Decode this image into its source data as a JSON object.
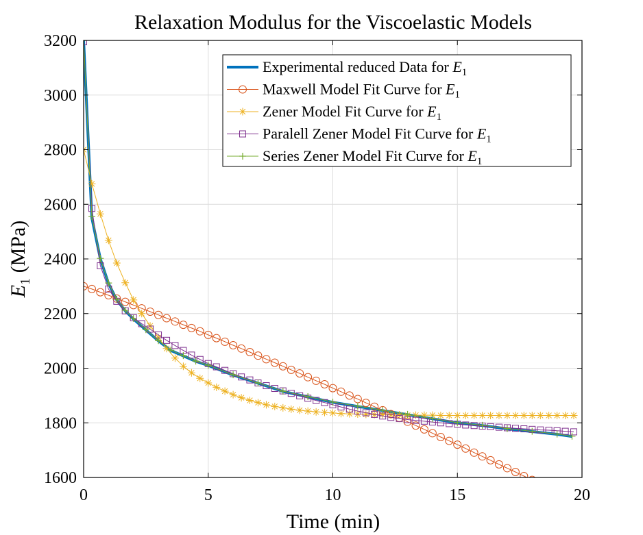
{
  "chart_data": {
    "type": "line",
    "title": "Relaxation Modulus for the Viscoelastic Models",
    "xlabel": "Time (min)",
    "ylabel_var": "E",
    "ylabel_sub": "1",
    "ylabel_unit": "(MPa)",
    "xlim": [
      0,
      20
    ],
    "ylim": [
      1600,
      3200
    ],
    "xticks": [
      0,
      5,
      10,
      15,
      20
    ],
    "yticks": [
      1600,
      1800,
      2000,
      2200,
      2400,
      2600,
      2800,
      3000,
      3200
    ],
    "grid": true,
    "legend_position": "top-right",
    "series": [
      {
        "id": "experimental",
        "name": "Experimental reduced Data for E1",
        "legend_text": "Experimental reduced Data for ",
        "color": "#0072BD",
        "marker": "none",
        "x": [
          0.0,
          0.33,
          0.67,
          1.0,
          1.33,
          1.67,
          2.0,
          2.5,
          3.0,
          3.5,
          4.0,
          4.5,
          5.0,
          6.0,
          7.0,
          8.0,
          9.0,
          10.0,
          11.0,
          12.0,
          13.0,
          14.0,
          15.0,
          16.0,
          17.0,
          18.0,
          19.0,
          19.6
        ],
        "y": [
          3200,
          2550,
          2400,
          2310,
          2250,
          2210,
          2180,
          2140,
          2100,
          2065,
          2045,
          2025,
          2010,
          1975,
          1945,
          1915,
          1895,
          1875,
          1860,
          1845,
          1830,
          1815,
          1800,
          1790,
          1778,
          1768,
          1758,
          1750
        ]
      },
      {
        "id": "maxwell",
        "name": "Maxwell Model Fit Curve for E1",
        "legend_text": "Maxwell Model Fit Curve for ",
        "color": "#D95319",
        "marker": "circle",
        "x": [
          0.0,
          0.33,
          0.67,
          1.0,
          1.33,
          1.67,
          2.0,
          2.33,
          2.67,
          3.0,
          3.33,
          3.67,
          4.0,
          4.33,
          4.67,
          5.0,
          5.33,
          5.67,
          6.0,
          6.33,
          6.67,
          7.0,
          7.33,
          7.67,
          8.0,
          8.33,
          8.67,
          9.0,
          9.33,
          9.67,
          10.0,
          10.33,
          10.67,
          11.0,
          11.33,
          11.67,
          12.0,
          12.33,
          12.67,
          13.0,
          13.33,
          13.67,
          14.0,
          14.33,
          14.67,
          15.0,
          15.33,
          15.67,
          16.0,
          16.33,
          16.67,
          17.0,
          17.33,
          17.67,
          18.0,
          18.33,
          18.67,
          19.0,
          19.33,
          19.67
        ],
        "y": [
          2300,
          2290,
          2278,
          2267,
          2255,
          2243,
          2231,
          2219,
          2207,
          2195,
          2183,
          2171,
          2159,
          2147,
          2135,
          2122,
          2110,
          2097,
          2084,
          2072,
          2059,
          2046,
          2033,
          2020,
          2007,
          1994,
          1981,
          1967,
          1954,
          1941,
          1927,
          1914,
          1900,
          1887,
          1873,
          1859,
          1846,
          1832,
          1818,
          1804,
          1790,
          1776,
          1762,
          1748,
          1734,
          1720,
          1706,
          1691,
          1677,
          1663,
          1648,
          1634,
          1620,
          1605,
          1591,
          1576,
          1561,
          1547,
          1532,
          1517
        ]
      },
      {
        "id": "zener",
        "name": "Zener Model Fit Curve for E1",
        "legend_text": "Zener Model Fit Curve for ",
        "color": "#EDB120",
        "marker": "asterisk",
        "x": [
          0.0,
          0.33,
          0.67,
          1.0,
          1.33,
          1.67,
          2.0,
          2.33,
          2.67,
          3.0,
          3.33,
          3.67,
          4.0,
          4.33,
          4.67,
          5.0,
          5.33,
          5.67,
          6.0,
          6.33,
          6.67,
          7.0,
          7.33,
          7.67,
          8.0,
          8.33,
          8.67,
          9.0,
          9.33,
          9.67,
          10.0,
          10.33,
          10.67,
          11.0,
          11.33,
          11.67,
          12.0,
          12.33,
          12.67,
          13.0,
          13.33,
          13.67,
          14.0,
          14.33,
          14.67,
          15.0,
          15.33,
          15.67,
          16.0,
          16.33,
          16.67,
          17.0,
          17.33,
          17.67,
          18.0,
          18.33,
          18.67,
          19.0,
          19.33,
          19.67
        ],
        "y": [
          2800,
          2675,
          2565,
          2468,
          2385,
          2313,
          2250,
          2200,
          2155,
          2112,
          2072,
          2037,
          2007,
          1983,
          1963,
          1946,
          1930,
          1916,
          1903,
          1892,
          1882,
          1874,
          1866,
          1860,
          1855,
          1850,
          1846,
          1843,
          1840,
          1838,
          1836,
          1834,
          1833,
          1832,
          1831,
          1830,
          1830,
          1829,
          1829,
          1828,
          1828,
          1828,
          1828,
          1827,
          1827,
          1827,
          1827,
          1827,
          1827,
          1827,
          1827,
          1827,
          1827,
          1827,
          1827,
          1827,
          1827,
          1827,
          1827,
          1827
        ]
      },
      {
        "id": "paralell",
        "name": "Paralell Zener Model Fit Curve for E1",
        "legend_text": "Paralell Zener Model Fit Curve for ",
        "color": "#7E2F8E",
        "marker": "square",
        "x": [
          0.0,
          0.33,
          0.67,
          1.0,
          1.33,
          1.67,
          2.0,
          2.33,
          2.67,
          3.0,
          3.33,
          3.67,
          4.0,
          4.33,
          4.67,
          5.0,
          5.33,
          5.67,
          6.0,
          6.33,
          6.67,
          7.0,
          7.33,
          7.67,
          8.0,
          8.33,
          8.67,
          9.0,
          9.33,
          9.67,
          10.0,
          10.33,
          10.67,
          11.0,
          11.33,
          11.67,
          12.0,
          12.33,
          12.67,
          13.0,
          13.33,
          13.67,
          14.0,
          14.33,
          14.67,
          15.0,
          15.33,
          15.67,
          16.0,
          16.33,
          16.67,
          17.0,
          17.33,
          17.67,
          18.0,
          18.33,
          18.67,
          19.0,
          19.33,
          19.67
        ],
        "y": [
          3195,
          2585,
          2375,
          2290,
          2245,
          2210,
          2185,
          2163,
          2143,
          2122,
          2102,
          2083,
          2065,
          2048,
          2032,
          2017,
          2005,
          1992,
          1980,
          1968,
          1957,
          1946,
          1936,
          1926,
          1917,
          1908,
          1899,
          1890,
          1882,
          1874,
          1866,
          1858,
          1850,
          1843,
          1837,
          1831,
          1825,
          1820,
          1816,
          1812,
          1809,
          1806,
          1803,
          1800,
          1797,
          1795,
          1792,
          1790,
          1788,
          1786,
          1784,
          1782,
          1780,
          1778,
          1776,
          1774,
          1773,
          1771,
          1769,
          1767
        ]
      },
      {
        "id": "series",
        "name": "Series Zener Model Fit Curve for E1",
        "legend_text": "Series Zener Model Fit Curve for ",
        "color": "#77AC30",
        "marker": "plus",
        "x": [
          0.0,
          0.33,
          0.67,
          1.0,
          1.33,
          1.67,
          2.0,
          2.5,
          3.0,
          3.5,
          4.0,
          4.5,
          5.0,
          6.0,
          7.0,
          8.0,
          9.0,
          10.0,
          11.0,
          12.0,
          13.0,
          14.0,
          15.0,
          16.0,
          17.0,
          18.0,
          19.0,
          19.6
        ],
        "y": [
          3200,
          2555,
          2402,
          2312,
          2252,
          2212,
          2182,
          2141,
          2101,
          2066,
          2046,
          2026,
          2011,
          1976,
          1946,
          1916,
          1896,
          1876,
          1861,
          1846,
          1831,
          1816,
          1801,
          1791,
          1779,
          1769,
          1759,
          1751
        ]
      }
    ]
  }
}
